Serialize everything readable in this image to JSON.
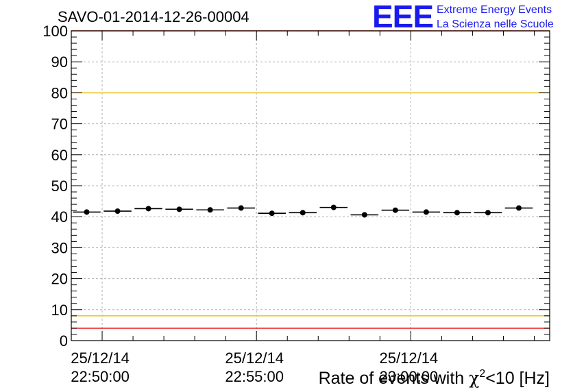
{
  "header": {
    "run_title": "SAVO-01-2014-12-26-00004",
    "logo_text": "EEE",
    "logo_line1": "Extreme Energy Events",
    "logo_line2": "La Scienza nelle Scuole"
  },
  "colors": {
    "logo": "#1a1aee",
    "data": "#000000",
    "upper_limit": "#e8241c",
    "lower_limit": "#e8241c",
    "upper_warning": "#f0c820",
    "lower_warning": "#f0c820",
    "grid": "#b0b0b0"
  },
  "chart_data": {
    "type": "scatter",
    "x_axis_kind": "time",
    "y_axis_label_parts": [
      "Rate of events with ",
      "χ",
      "2",
      "<10 [Hz]"
    ],
    "ylim": [
      0,
      100
    ],
    "y_ticks": [
      0,
      10,
      20,
      30,
      40,
      50,
      60,
      70,
      80,
      90,
      100
    ],
    "x_range_minutes": [
      -1.0,
      14.5
    ],
    "x_ticks": [
      {
        "minute": 0,
        "date": "25/12/14",
        "time": "22:50:00"
      },
      {
        "minute": 5,
        "date": "25/12/14",
        "time": "22:55:00"
      },
      {
        "minute": 10,
        "date": "25/12/14",
        "time": "23:00:00"
      }
    ],
    "grid": true,
    "reference_lines": [
      {
        "kind": "upper_limit",
        "y": 100
      },
      {
        "kind": "upper_warning",
        "y": 80
      },
      {
        "kind": "lower_warning",
        "y": 8
      },
      {
        "kind": "lower_limit",
        "y": 4
      }
    ],
    "bin_width_minutes": 0.9,
    "points": [
      {
        "x": -0.5,
        "y": 41.5
      },
      {
        "x": 0.5,
        "y": 41.8
      },
      {
        "x": 1.5,
        "y": 42.6
      },
      {
        "x": 2.5,
        "y": 42.4
      },
      {
        "x": 3.5,
        "y": 42.2
      },
      {
        "x": 4.5,
        "y": 42.8
      },
      {
        "x": 5.5,
        "y": 41.1
      },
      {
        "x": 6.5,
        "y": 41.3
      },
      {
        "x": 7.5,
        "y": 43.0
      },
      {
        "x": 8.5,
        "y": 40.6
      },
      {
        "x": 9.5,
        "y": 42.1
      },
      {
        "x": 10.5,
        "y": 41.5
      },
      {
        "x": 11.5,
        "y": 41.3
      },
      {
        "x": 12.5,
        "y": 41.3
      },
      {
        "x": 13.5,
        "y": 42.8
      }
    ]
  }
}
